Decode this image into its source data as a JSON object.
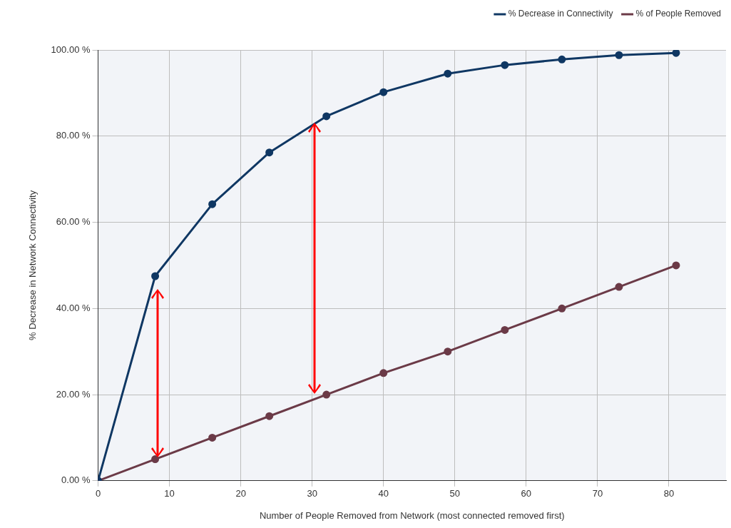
{
  "chart_data": {
    "type": "line",
    "xlabel": "Number of People Removed from Network (most connected removed first)",
    "ylabel": "% Decrease in Network Connectivity",
    "x": [
      0,
      8,
      16,
      24,
      32,
      40,
      49,
      57,
      65,
      73,
      81
    ],
    "series": [
      {
        "name": "% Decrease in Connectivity",
        "color": "#0f3763",
        "values": [
          0,
          47.5,
          64.2,
          76.2,
          84.6,
          90.2,
          94.5,
          96.5,
          97.8,
          98.8,
          99.3
        ]
      },
      {
        "name": "% of People Removed",
        "color": "#6b3a47",
        "values": [
          0,
          5,
          10,
          15,
          20,
          25,
          30,
          35,
          40,
          45,
          50
        ]
      }
    ],
    "xlim": [
      0,
      88
    ],
    "xticks": [
      0,
      10,
      20,
      30,
      40,
      50,
      60,
      70,
      80
    ],
    "ylim": [
      0,
      100
    ],
    "yticks": [
      {
        "value": 0,
        "label": "0.00 %"
      },
      {
        "value": 20,
        "label": "20.00 %"
      },
      {
        "value": 40,
        "label": "40.00 %"
      },
      {
        "value": 60,
        "label": "60.00 %"
      },
      {
        "value": 80,
        "label": "80.00 %"
      },
      {
        "value": 100,
        "label": "100.00 %"
      }
    ],
    "grid": true,
    "legend": "top right",
    "marker": "circle",
    "line_style": "solid"
  }
}
